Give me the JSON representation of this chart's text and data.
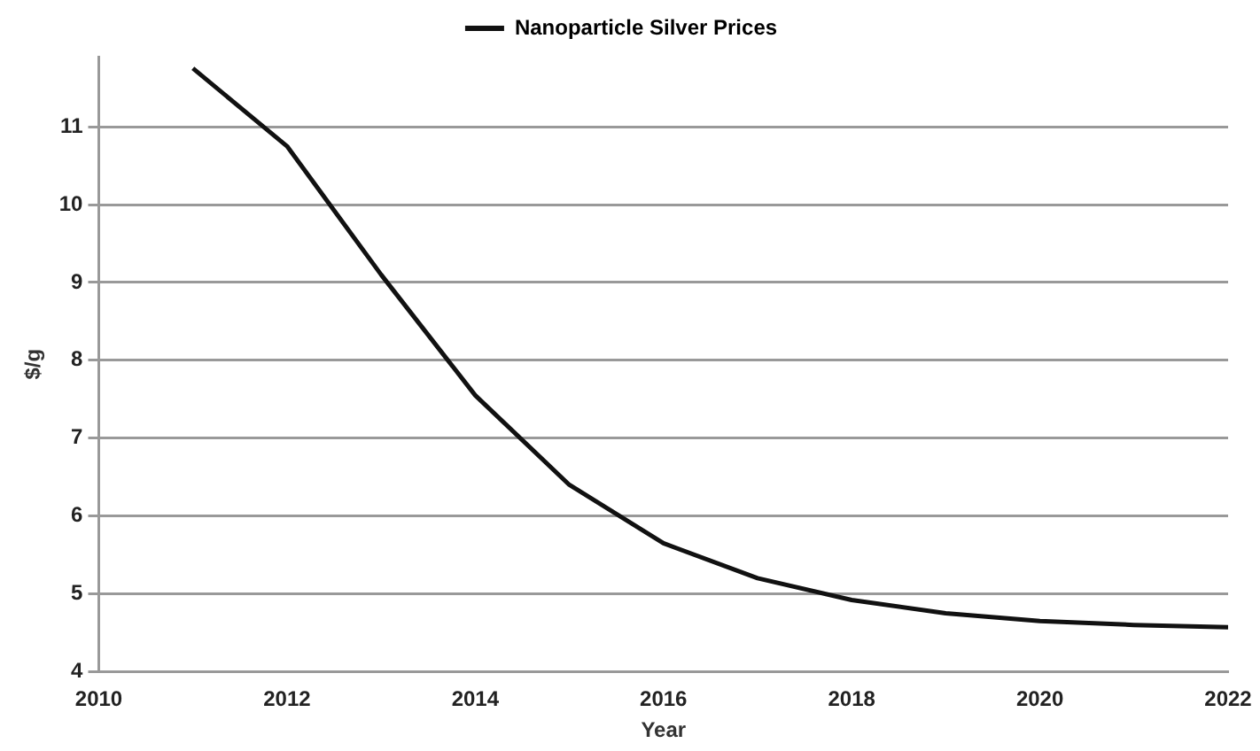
{
  "chart_data": {
    "type": "line",
    "xlabel": "Year",
    "ylabel": "$/g",
    "x": [
      2011,
      2012,
      2013,
      2014,
      2015,
      2016,
      2017,
      2018,
      2019,
      2020,
      2021,
      2022
    ],
    "series": [
      {
        "name": "Nanoparticle Silver Prices",
        "color": "#111111",
        "values": [
          11.75,
          10.75,
          9.1,
          7.55,
          6.4,
          5.65,
          5.2,
          4.92,
          4.75,
          4.65,
          4.6,
          4.57
        ]
      }
    ],
    "xlim": [
      2010,
      2022
    ],
    "xticks": [
      2010,
      2012,
      2014,
      2016,
      2018,
      2020,
      2022
    ],
    "ylim": [
      4,
      11.9
    ],
    "yticks": [
      4,
      5,
      6,
      7,
      8,
      9,
      10,
      11
    ],
    "grid": "y",
    "legend": "top",
    "marker": "none",
    "line_style": "solid"
  }
}
